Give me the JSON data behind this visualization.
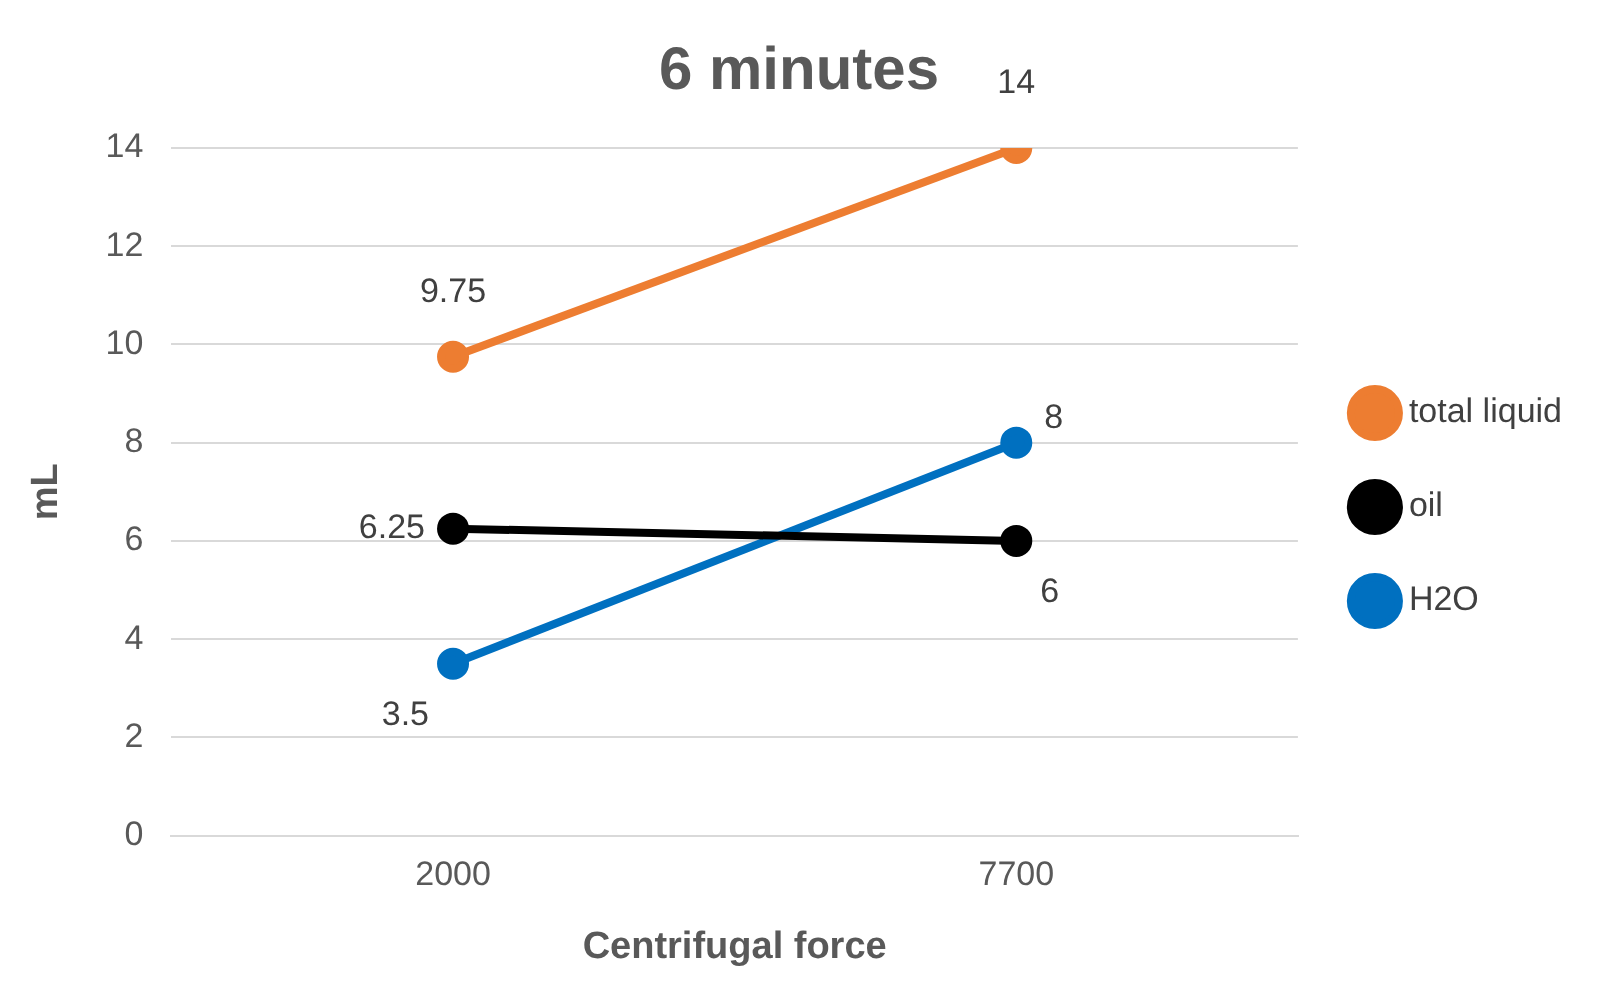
{
  "chart_data": {
    "type": "line",
    "title": "6 minutes",
    "xlabel": "Centrifugal force",
    "ylabel": "mL",
    "categories": [
      "2000",
      "7700"
    ],
    "series": [
      {
        "name": "total liquid",
        "color": "#ed7d31",
        "values": [
          9.75,
          14
        ]
      },
      {
        "name": "oil",
        "color": "#000000",
        "values": [
          6.25,
          6
        ]
      },
      {
        "name": "H2O",
        "color": "#0070c0",
        "values": [
          3.5,
          8
        ]
      }
    ],
    "ylim": [
      0,
      14
    ],
    "yticks": [
      0,
      2,
      4,
      6,
      8,
      10,
      12,
      14
    ],
    "grid": "y",
    "legend": "right",
    "marker": "circle",
    "line_style": "solid",
    "data_labels": true
  }
}
